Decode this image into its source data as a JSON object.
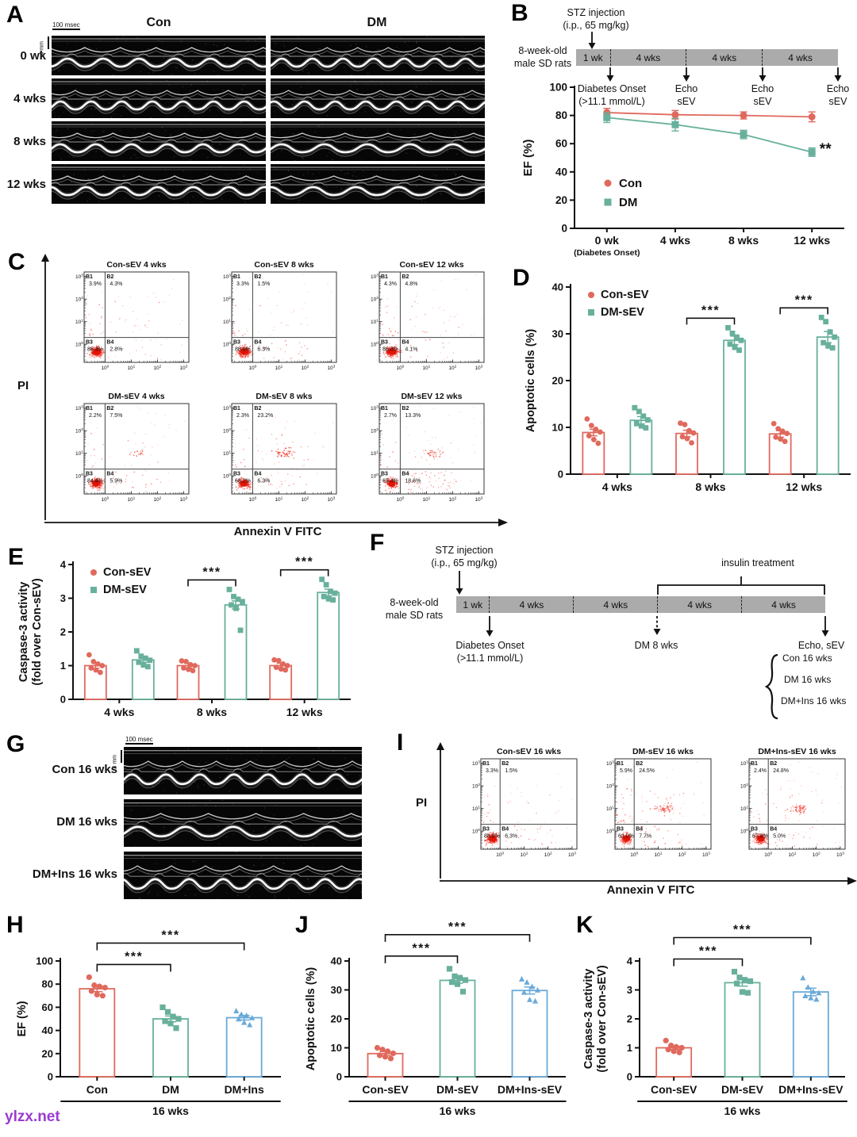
{
  "watermark": "ylzx.net",
  "colors": {
    "con": "#e0695d",
    "dm": "#68b09c",
    "ins": "#6aaad9",
    "flow_dot": "#f2392c",
    "timeline_bar": "#ababab"
  },
  "panels": {
    "A": {
      "letter": "A",
      "columns": [
        "Con",
        "DM"
      ],
      "rows": [
        "0 wk",
        "4 wks",
        "8 wks",
        "12 wks"
      ],
      "time_scale": "100 msec",
      "depth_scale": "4 mm"
    },
    "B": {
      "letter": "B",
      "timeline": {
        "injection_line1": "STZ injection",
        "injection_line2": "(i.p., 65 mg/kg)",
        "subject_line1": "8-week-old",
        "subject_line2": "male SD rats",
        "segments": [
          "1 wk",
          "4 wks",
          "4 wks",
          "4 wks"
        ],
        "event1_line1": "Diabetes Onset",
        "event1_line2": "(>11.1 mmol/L)",
        "echo_line1": "Echo",
        "echo_line2": "sEV"
      },
      "chart_data": {
        "type": "line",
        "categories": [
          "0 wk",
          "4 wks",
          "8 wks",
          "12 wks"
        ],
        "x_sublabel": "(Diabetes Onset)",
        "ylabel": "EF (%)",
        "ylim": [
          0,
          100
        ],
        "yticks": [
          0,
          20,
          40,
          60,
          80,
          100
        ],
        "series": [
          {
            "name": "Con",
            "marker": "circle",
            "color": "#e0695d",
            "values": [
              82,
              80.5,
              80,
              79
            ],
            "errors": [
              3,
              3,
              2.5,
              3.5
            ]
          },
          {
            "name": "DM",
            "marker": "square",
            "color": "#68b09c",
            "values": [
              78.5,
              73.5,
              66.5,
              54
            ],
            "errors": [
              3.5,
              4.5,
              3,
              3
            ]
          }
        ],
        "annotation": "**",
        "legend_position": "lower-left"
      }
    },
    "C": {
      "letter": "C",
      "ylabel": "PI",
      "xlabel": "Annexin V FITC",
      "axis_ticks": [
        "10⁰",
        "10¹",
        "10²",
        "10³"
      ],
      "plots": [
        {
          "title": "Con-sEV 4 wks",
          "b1": 3.9,
          "b2": 4.3,
          "b3": 88.4,
          "b4": 2.8
        },
        {
          "title": "Con-sEV 8 wks",
          "b1": 3.3,
          "b2": 1.5,
          "b3": 88.9,
          "b4": 6.3
        },
        {
          "title": "Con-sEV 12 wks",
          "b1": 4.3,
          "b2": 4.8,
          "b3": 86.8,
          "b4": 4.1
        },
        {
          "title": "DM-sEV 4 wks",
          "b1": 2.2,
          "b2": 7.5,
          "b3": 84.4,
          "b4": 5.9
        },
        {
          "title": "DM-sEV 8 wks",
          "b1": 2.3,
          "b2": 23.2,
          "b3": 68.2,
          "b4": 6.3
        },
        {
          "title": "DM-sEV 12 wks",
          "b1": 2.7,
          "b2": 13.3,
          "b3": 65.4,
          "b4": 18.6
        }
      ]
    },
    "D": {
      "letter": "D",
      "chart_data": {
        "type": "grouped-bar",
        "categories": [
          "4 wks",
          "8 wks",
          "12 wks"
        ],
        "ylabel_lines": [
          "Apoptotic cells (%)"
        ],
        "ylim": [
          0,
          40
        ],
        "yticks": [
          0,
          10,
          20,
          30,
          40
        ],
        "series": [
          {
            "name": "Con-sEV",
            "marker": "circle",
            "color": "#e0695d",
            "values": [
              8.9,
              8.7,
              8.6
            ],
            "errors": [
              0.7,
              0.7,
              0.7
            ],
            "points": [
              [
                11.8,
                10.4,
                9.6,
                9.0,
                8.2,
                7.4,
                6.6
              ],
              [
                10.9,
                10.6,
                9.3,
                8.8,
                8.0,
                7.6,
                6.7
              ],
              [
                10.8,
                9.7,
                9.2,
                8.7,
                7.9,
                7.5,
                7.0
              ]
            ]
          },
          {
            "name": "DM-sEV",
            "marker": "square",
            "color": "#68b09c",
            "values": [
              11.5,
              28.6,
              29.3
            ],
            "errors": [
              0.8,
              0.9,
              1.2
            ],
            "points": [
              [
                14.2,
                13.4,
                12.4,
                11.6,
                10.8,
                10.3,
                9.9
              ],
              [
                31.3,
                30.1,
                29.3,
                28.6,
                27.8,
                27.1,
                26.5
              ],
              [
                33.5,
                32.6,
                30.4,
                29.3,
                28.1,
                27.4,
                27.0
              ]
            ]
          }
        ],
        "sig": [
          {
            "cat": 1,
            "label": "***"
          },
          {
            "cat": 2,
            "label": "***"
          }
        ]
      }
    },
    "E": {
      "letter": "E",
      "chart_data": {
        "type": "grouped-bar",
        "categories": [
          "4 wks",
          "8 wks",
          "12 wks"
        ],
        "ylabel_lines": [
          "Caspase-3 activity",
          "(fold over Con-sEV)"
        ],
        "ylim": [
          0,
          4
        ],
        "yticks": [
          0,
          1,
          2,
          3,
          4
        ],
        "series": [
          {
            "name": "Con-sEV",
            "marker": "circle",
            "color": "#e0695d",
            "values": [
              1.0,
              1.0,
              1.0
            ],
            "errors": [
              0.08,
              0.07,
              0.07
            ],
            "points": [
              [
                1.32,
                1.12,
                1.05,
                1.0,
                0.93,
                0.87,
                0.8
              ],
              [
                1.14,
                1.12,
                1.03,
                1.0,
                0.93,
                0.89,
                0.85
              ],
              [
                1.17,
                1.15,
                1.05,
                1.0,
                0.95,
                0.9,
                0.87
              ]
            ]
          },
          {
            "name": "DM-sEV",
            "marker": "square",
            "color": "#68b09c",
            "values": [
              1.17,
              2.8,
              3.17
            ],
            "errors": [
              0.07,
              0.12,
              0.1
            ],
            "points": [
              [
                1.44,
                1.28,
                1.22,
                1.16,
                1.1,
                1.02,
                0.97
              ],
              [
                3.26,
                3.05,
                2.97,
                2.9,
                2.8,
                2.7,
                2.05
              ],
              [
                3.56,
                3.4,
                3.2,
                3.15,
                3.05,
                2.98,
                2.95
              ]
            ]
          }
        ],
        "sig": [
          {
            "cat": 1,
            "label": "***"
          },
          {
            "cat": 2,
            "label": "***"
          }
        ]
      }
    },
    "F": {
      "letter": "F",
      "timeline": {
        "injection_line1": "STZ injection",
        "injection_line2": "(i.p., 65 mg/kg)",
        "subject_line1": "8-week-old",
        "subject_line2": "male SD rats",
        "segments": [
          "1 wk",
          "4 wks",
          "4 wks",
          "4 wks",
          "4 wks"
        ],
        "insulin_label": "insulin treatment",
        "event1_line1": "Diabetes Onset",
        "event1_line2": "(>11.1 mmol/L)",
        "event2": "DM 8 wks",
        "event3": "Echo, sEV",
        "groups": [
          "Con 16 wks",
          "DM 16 wks",
          "DM+Ins 16 wks"
        ]
      }
    },
    "G": {
      "letter": "G",
      "rows": [
        "Con 16 wks",
        "DM 16 wks",
        "DM+Ins 16 wks"
      ],
      "time_scale": "100 msec",
      "depth_scale": "4 mm"
    },
    "I": {
      "letter": "I",
      "ylabel": "PI",
      "xlabel": "Annexin V FITC",
      "axis_ticks": [
        "10⁰",
        "10¹",
        "10²",
        "10³"
      ],
      "plots": [
        {
          "title": "Con-sEV 16 wks",
          "b1": 3.3,
          "b2": 1.5,
          "b3": 88.9,
          "b4": 6.3
        },
        {
          "title": "DM-sEV 16 wks",
          "b1": 5.9,
          "b2": 24.5,
          "b3": 62.0,
          "b4": 7.7
        },
        {
          "title": "DM+Ins-sEV 16 wks",
          "b1": 2.4,
          "b2": 24.8,
          "b3": 67.8,
          "b4": 5.0
        }
      ]
    },
    "H": {
      "letter": "H",
      "chart_data": {
        "type": "bar",
        "categories": [
          "Con",
          "DM",
          "DM+Ins"
        ],
        "group_label": "16 wks",
        "ylabel_lines": [
          "EF (%)"
        ],
        "ylim": [
          0,
          100
        ],
        "yticks": [
          0,
          20,
          40,
          60,
          80,
          100
        ],
        "colors": [
          "#e0695d",
          "#68b09c",
          "#6aaad9"
        ],
        "markers": [
          "circle",
          "square",
          "triangle"
        ],
        "values": [
          76,
          50,
          51
        ],
        "errors": [
          2.5,
          2.5,
          2
        ],
        "points": [
          [
            86,
            79,
            78,
            77,
            74,
            71,
            70
          ],
          [
            60,
            56,
            52,
            50,
            48,
            46,
            42
          ],
          [
            57,
            54,
            53,
            51,
            50,
            47,
            45
          ]
        ],
        "sig": [
          {
            "from": 0,
            "to": 1,
            "label": "***"
          },
          {
            "from": 0,
            "to": 2,
            "label": "***"
          }
        ]
      }
    },
    "J": {
      "letter": "J",
      "chart_data": {
        "type": "bar",
        "categories": [
          "Con-sEV",
          "DM-sEV",
          "DM+Ins-sEV"
        ],
        "group_label": "16 wks",
        "ylabel_lines": [
          "Apoptotic cells (%)"
        ],
        "ylim": [
          0,
          40
        ],
        "yticks": [
          0,
          10,
          20,
          30,
          40
        ],
        "colors": [
          "#e0695d",
          "#68b09c",
          "#6aaad9"
        ],
        "markers": [
          "circle",
          "square",
          "triangle"
        ],
        "values": [
          8.0,
          33.3,
          29.8
        ],
        "errors": [
          0.7,
          1.0,
          1.2
        ],
        "points": [
          [
            10.0,
            9.4,
            8.8,
            8.1,
            7.4,
            6.9,
            6.3
          ],
          [
            37.3,
            34.7,
            34.2,
            33.4,
            32.7,
            32.0,
            29.4
          ],
          [
            33.8,
            32.7,
            31.2,
            30.0,
            29.2,
            26.7,
            26.2
          ]
        ],
        "sig": [
          {
            "from": 0,
            "to": 1,
            "label": "***"
          },
          {
            "from": 0,
            "to": 2,
            "label": "***"
          }
        ]
      }
    },
    "K": {
      "letter": "K",
      "chart_data": {
        "type": "bar",
        "categories": [
          "Con-sEV",
          "DM-sEV",
          "DM+Ins-sEV"
        ],
        "group_label": "16 wks",
        "ylabel_lines": [
          "Caspase-3 activity",
          "(fold over Con-sEV)"
        ],
        "ylim": [
          0,
          4
        ],
        "yticks": [
          0,
          1,
          2,
          3,
          4
        ],
        "colors": [
          "#e0695d",
          "#68b09c",
          "#6aaad9"
        ],
        "markers": [
          "circle",
          "square",
          "triangle"
        ],
        "values": [
          1.0,
          3.25,
          2.93
        ],
        "errors": [
          0.06,
          0.12,
          0.13
        ],
        "points": [
          [
            1.25,
            1.08,
            1.03,
            1.0,
            0.94,
            0.88,
            0.84
          ],
          [
            3.63,
            3.43,
            3.35,
            3.3,
            3.22,
            2.93,
            2.9
          ],
          [
            3.42,
            3.1,
            2.95,
            2.9,
            2.8,
            2.73,
            2.68
          ]
        ],
        "sig": [
          {
            "from": 0,
            "to": 1,
            "label": "***"
          },
          {
            "from": 0,
            "to": 2,
            "label": "***"
          }
        ]
      }
    }
  }
}
